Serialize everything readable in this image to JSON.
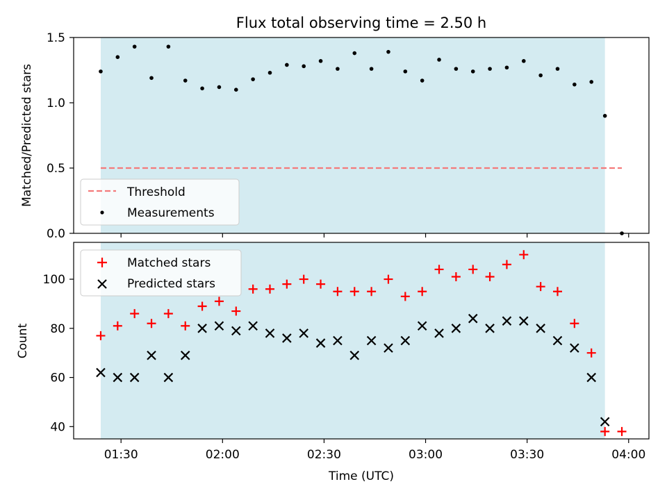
{
  "title": "Flux total observing time = 2.50 h",
  "chart_data": [
    {
      "type": "scatter",
      "panel": "top",
      "xlabel": "",
      "ylabel": "Matched/Predicted stars",
      "ylim": [
        0,
        1.5
      ],
      "yticks": [
        "0.0",
        "0.5",
        "1.0",
        "1.5"
      ],
      "xlim": [
        "01:16",
        "04:06"
      ],
      "grid": false,
      "legend": "lower-left",
      "shaded_span": [
        "01:24",
        "03:53"
      ],
      "shade_color": "#d4ebf1",
      "threshold": {
        "name": "Threshold",
        "y": 0.5,
        "x_range": [
          "01:24",
          "03:58"
        ],
        "color": "#f47a7a",
        "style": "dashed"
      },
      "series": [
        {
          "name": "Measurements",
          "color": "#000000",
          "marker": "dot",
          "x": [
            "01:24",
            "01:29",
            "01:34",
            "01:39",
            "01:44",
            "01:49",
            "01:54",
            "01:59",
            "02:04",
            "02:09",
            "02:14",
            "02:19",
            "02:24",
            "02:29",
            "02:34",
            "02:39",
            "02:44",
            "02:49",
            "02:54",
            "02:59",
            "03:04",
            "03:09",
            "03:14",
            "03:19",
            "03:24",
            "03:29",
            "03:34",
            "03:39",
            "03:44",
            "03:49",
            "03:53",
            "03:58"
          ],
          "values": [
            1.24,
            1.35,
            1.43,
            1.19,
            1.43,
            1.17,
            1.11,
            1.12,
            1.1,
            1.18,
            1.23,
            1.29,
            1.28,
            1.32,
            1.26,
            1.38,
            1.26,
            1.39,
            1.24,
            1.17,
            1.33,
            1.26,
            1.24,
            1.26,
            1.27,
            1.32,
            1.21,
            1.26,
            1.14,
            1.16,
            0.9,
            0.0
          ]
        }
      ]
    },
    {
      "type": "scatter",
      "panel": "bottom",
      "xlabel": "Time (UTC)",
      "ylabel": "Count",
      "ylim": [
        35,
        115
      ],
      "yticks": [
        "40",
        "60",
        "80",
        "100"
      ],
      "xlim": [
        "01:16",
        "04:06"
      ],
      "xticks": [
        "01:30",
        "02:00",
        "02:30",
        "03:00",
        "03:30",
        "04:00"
      ],
      "grid": false,
      "legend": "upper-left",
      "shaded_span": [
        "01:24",
        "03:53"
      ],
      "shade_color": "#d4ebf1",
      "series": [
        {
          "name": "Matched stars",
          "color": "#ff0000",
          "marker": "plus",
          "x": [
            "01:24",
            "01:29",
            "01:34",
            "01:39",
            "01:44",
            "01:49",
            "01:54",
            "01:59",
            "02:04",
            "02:09",
            "02:14",
            "02:19",
            "02:24",
            "02:29",
            "02:34",
            "02:39",
            "02:44",
            "02:49",
            "02:54",
            "02:59",
            "03:04",
            "03:09",
            "03:14",
            "03:19",
            "03:24",
            "03:29",
            "03:34",
            "03:39",
            "03:44",
            "03:49",
            "03:53",
            "03:58"
          ],
          "values": [
            77,
            81,
            86,
            82,
            86,
            81,
            89,
            91,
            87,
            96,
            96,
            98,
            100,
            98,
            95,
            95,
            95,
            100,
            93,
            95,
            104,
            101,
            104,
            101,
            106,
            110,
            97,
            95,
            82,
            70,
            38,
            38
          ]
        },
        {
          "name": "Predicted stars",
          "color": "#000000",
          "marker": "x",
          "x": [
            "01:24",
            "01:29",
            "01:34",
            "01:39",
            "01:44",
            "01:49",
            "01:54",
            "01:59",
            "02:04",
            "02:09",
            "02:14",
            "02:19",
            "02:24",
            "02:29",
            "02:34",
            "02:39",
            "02:44",
            "02:49",
            "02:54",
            "02:59",
            "03:04",
            "03:09",
            "03:14",
            "03:19",
            "03:24",
            "03:29",
            "03:34",
            "03:39",
            "03:44",
            "03:49",
            "03:53"
          ],
          "values": [
            62,
            60,
            60,
            69,
            60,
            69,
            80,
            81,
            79,
            81,
            78,
            76,
            78,
            74,
            75,
            69,
            75,
            72,
            75,
            81,
            78,
            80,
            84,
            80,
            83,
            83,
            80,
            75,
            72,
            60,
            42
          ]
        }
      ]
    }
  ]
}
